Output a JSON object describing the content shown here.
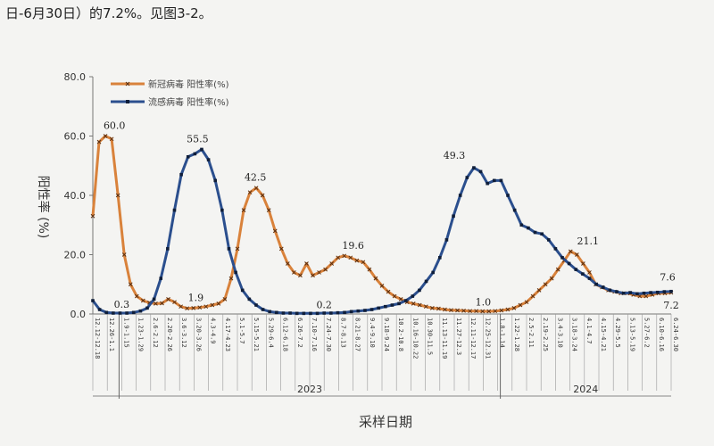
{
  "header_text": "日-6月30日）的7.2%。见图3-2。",
  "chart_data": {
    "type": "line",
    "xlabel": "采样日期",
    "ylabel": "阳性率 (%)",
    "ylim": [
      0,
      80
    ],
    "yticks": [
      "0.0",
      "20.0",
      "40.0",
      "60.0",
      "80.0"
    ],
    "grid": false,
    "legend_position": "top-left",
    "x_ticks": [
      "12.12-12.18",
      "12.26-1.1",
      "1.9-1.15",
      "1.23-1.29",
      "2.6-2.12",
      "2.20-2.26",
      "3.6-3.12",
      "3.20-3.26",
      "4.3-4.9",
      "4.17-4.23",
      "5.1-5.7",
      "5.15-5.21",
      "5.29-6.4",
      "6.12-6.18",
      "6.26-7.2",
      "7.10-7.16",
      "7.24-7.30",
      "8.7-8.13",
      "8.21-8.27",
      "9.4-9.10",
      "9.18-9.24",
      "10.2-10.8",
      "10.16-10.22",
      "10.30-11.5",
      "11.13-11.19",
      "11.27-12.3",
      "12.11-12.17",
      "12.25-12.31",
      "1.8-1.14",
      "1.22-1.28",
      "2.5-2.11",
      "2.19-2.25",
      "3.4-3.10",
      "3.18-3.24",
      "4.1-4.7",
      "4.15-4.21",
      "4.29-5.5",
      "5.13-5.19",
      "5.27-6.2",
      "6.10-6.16",
      "6.24-6.30"
    ],
    "years": [
      "2023",
      "2024"
    ],
    "series": [
      {
        "name": "新冠病毒 阳性率(%)",
        "color": "#d9823b",
        "marker": "x",
        "values": [
          33,
          58,
          60,
          59,
          40,
          20,
          10,
          6,
          4.5,
          3.8,
          3.5,
          3.6,
          5,
          4,
          2.5,
          1.9,
          2,
          2.2,
          2.5,
          3,
          3.5,
          5,
          12,
          22,
          35,
          41,
          42.5,
          40,
          35,
          28,
          22,
          17,
          14,
          13,
          17,
          13,
          14,
          15,
          17,
          19,
          19.6,
          19,
          18,
          17.5,
          15,
          12,
          9.5,
          7.5,
          6,
          5,
          4,
          3.5,
          3,
          2.5,
          2,
          1.8,
          1.5,
          1.3,
          1.2,
          1.1,
          1,
          1,
          0.9,
          0.9,
          1,
          1.2,
          1.5,
          2,
          3,
          4,
          6,
          8,
          10,
          12,
          15,
          18,
          21.1,
          20,
          17,
          14,
          10,
          9,
          8,
          7.5,
          7,
          7,
          6.5,
          6,
          6,
          6.5,
          7,
          7,
          7.2
        ]
      },
      {
        "name": "流感病毒 阳性率(%)",
        "color": "#2b4f8e",
        "marker": "square",
        "values": [
          4.5,
          1.5,
          0.5,
          0.3,
          0.3,
          0.3,
          0.5,
          1,
          2,
          5,
          12,
          22,
          35,
          47,
          53,
          54,
          55.5,
          52,
          45,
          35,
          22,
          14,
          8,
          5,
          3,
          1.5,
          0.8,
          0.5,
          0.3,
          0.3,
          0.2,
          0.2,
          0.2,
          0.2,
          0.3,
          0.3,
          0.4,
          0.5,
          0.8,
          1,
          1.2,
          1.5,
          2,
          2.5,
          3,
          3.5,
          4.5,
          6,
          8,
          11,
          14,
          19,
          25,
          33,
          40,
          46,
          49.3,
          48,
          44,
          45,
          45,
          40,
          35,
          30,
          29,
          27.5,
          27,
          25,
          22,
          19,
          17,
          15,
          13.5,
          12,
          10,
          9,
          8,
          7.5,
          7,
          7.2,
          6.8,
          7,
          7.2,
          7.3,
          7.5,
          7.6
        ]
      }
    ],
    "annotations": [
      {
        "label": "60.0",
        "series": 0,
        "x": "12.26-1.1",
        "y": 60.0
      },
      {
        "label": "1.9",
        "series": 0,
        "x": "3.20-3.26",
        "y": 1.9
      },
      {
        "label": "42.5",
        "series": 0,
        "x": "5.15-5.21",
        "y": 42.5
      },
      {
        "label": "19.6",
        "series": 0,
        "x": "8.21-8.27",
        "y": 19.6
      },
      {
        "label": "1.0",
        "series": 0,
        "x": "12.25-12.31",
        "y": 1.0
      },
      {
        "label": "21.1",
        "series": 0,
        "x": "4.1-4.7",
        "y": 21.1
      },
      {
        "label": "7.2",
        "series": 0,
        "x": "6.24-6.30",
        "y": 7.2
      },
      {
        "label": "0.3",
        "series": 1,
        "x": "1.9-1.15",
        "y": 0.3
      },
      {
        "label": "55.5",
        "series": 1,
        "x": "3.20-3.26",
        "y": 55.5
      },
      {
        "label": "0.2",
        "series": 1,
        "x": "7.24-7.30",
        "y": 0.2
      },
      {
        "label": "49.3",
        "series": 1,
        "x": "11.27-12.3",
        "y": 49.3
      },
      {
        "label": "7.6",
        "series": 1,
        "x": "6.24-6.30",
        "y": 7.6
      }
    ]
  }
}
